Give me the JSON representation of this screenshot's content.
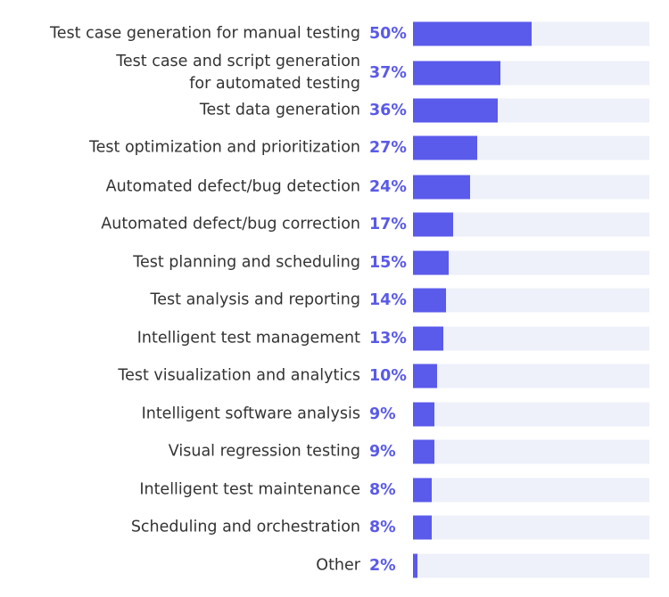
{
  "chart_data": {
    "type": "bar",
    "orientation": "horizontal",
    "categories": [
      "Test case generation for manual testing",
      "Test case and script generation\nfor automated testing",
      "Test data generation",
      "Test optimization and prioritization",
      "Automated defect/bug detection",
      "Automated defect/bug correction",
      "Test planning and scheduling",
      "Test analysis and reporting",
      "Intelligent test management",
      "Test visualization and analytics",
      "Intelligent software analysis",
      "Visual regression testing",
      "Intelligent test maintenance",
      "Scheduling and orchestration",
      "Other"
    ],
    "values": [
      50,
      37,
      36,
      27,
      24,
      17,
      15,
      14,
      13,
      10,
      9,
      9,
      8,
      8,
      2
    ],
    "value_labels": [
      "50%",
      "37%",
      "36%",
      "27%",
      "24%",
      "17%",
      "15%",
      "14%",
      "13%",
      "10%",
      "9%",
      "9%",
      "8%",
      "8%",
      "2%"
    ],
    "xlim": [
      0,
      100
    ],
    "grid": false,
    "colors": {
      "bar": "#5a5aeb",
      "track": "#eef0fa",
      "value_label": "#5a5ae8",
      "label": "#333333"
    }
  }
}
